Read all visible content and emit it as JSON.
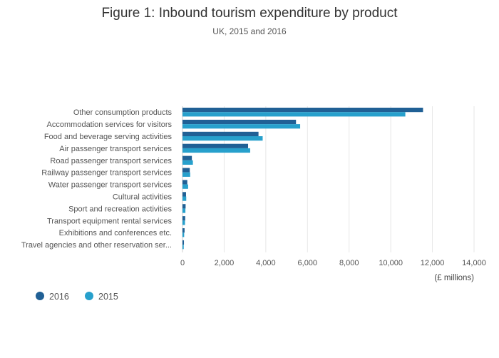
{
  "chart_data": {
    "type": "bar",
    "orientation": "horizontal",
    "title": "Figure 1: Inbound tourism expenditure by product",
    "subtitle": "UK, 2015 and 2016",
    "xlabel": "(£ millions)",
    "ylabel": "",
    "xlim": [
      0,
      14000
    ],
    "xticks": [
      0,
      2000,
      4000,
      6000,
      8000,
      10000,
      12000,
      14000
    ],
    "xtick_labels": [
      "0",
      "2,000",
      "4,000",
      "6,000",
      "8,000",
      "10,000",
      "12,000",
      "14,000"
    ],
    "grid": true,
    "legend_position": "bottom-left",
    "categories": [
      "Other consumption products",
      "Accommodation services for visitors",
      "Food and beverage serving activities",
      "Air passenger transport services",
      "Road passenger transport services",
      "Railway passenger transport services",
      "Water passenger transport services",
      "Cultural activities",
      "Sport and recreation activities",
      "Transport equipment rental services",
      "Exhibitions and conferences etc.",
      "Travel agencies and other reservation ser..."
    ],
    "series": [
      {
        "name": "2016",
        "color": "#206095",
        "values": [
          11550,
          5450,
          3650,
          3150,
          450,
          350,
          230,
          170,
          150,
          130,
          100,
          70
        ]
      },
      {
        "name": "2015",
        "color": "#27a0cc",
        "values": [
          10700,
          5650,
          3850,
          3250,
          500,
          370,
          270,
          180,
          140,
          120,
          80,
          60
        ]
      }
    ]
  }
}
